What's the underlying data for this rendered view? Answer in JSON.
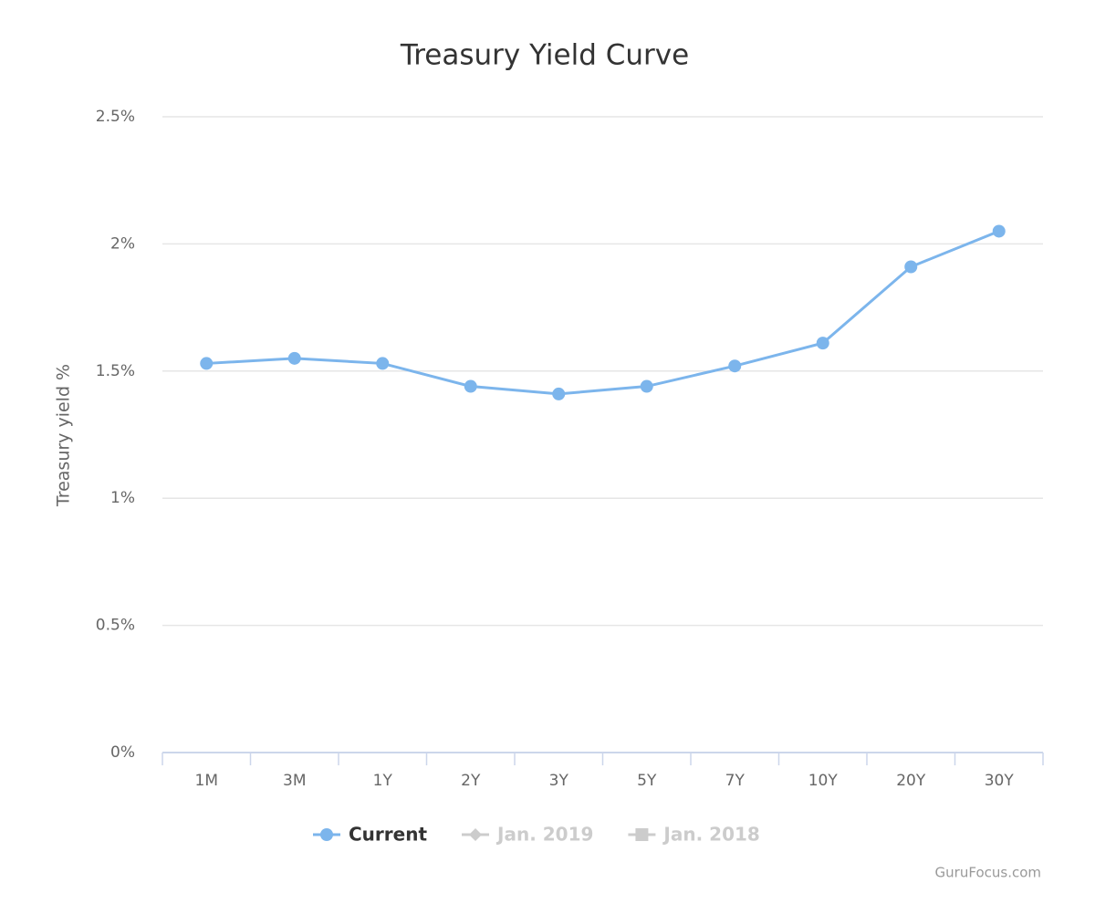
{
  "chart_data": {
    "type": "line",
    "title": "Treasury Yield Curve",
    "y_label": "Treasury yield %",
    "credit": "GuruFocus.com",
    "categories": [
      "1M",
      "3M",
      "1Y",
      "2Y",
      "3Y",
      "5Y",
      "7Y",
      "10Y",
      "20Y",
      "30Y"
    ],
    "series": [
      {
        "name": "Current",
        "color": "#7cb5ec",
        "marker": "circle",
        "visible": true,
        "values": [
          1.53,
          1.55,
          1.53,
          1.44,
          1.41,
          1.44,
          1.52,
          1.61,
          1.91,
          2.05
        ]
      },
      {
        "name": "Jan. 2019",
        "color": "#cccccc",
        "marker": "diamond",
        "visible": false,
        "values": [
          null,
          null,
          null,
          null,
          null,
          null,
          null,
          null,
          null,
          null
        ]
      },
      {
        "name": "Jan. 2018",
        "color": "#cccccc",
        "marker": "square",
        "visible": false,
        "values": [
          null,
          null,
          null,
          null,
          null,
          null,
          null,
          null,
          null,
          null
        ]
      }
    ],
    "ylim": [
      0,
      2.5
    ],
    "yticks": [
      {
        "value": 0,
        "label": "0%"
      },
      {
        "value": 0.5,
        "label": "0.5%"
      },
      {
        "value": 1,
        "label": "1%"
      },
      {
        "value": 1.5,
        "label": "1.5%"
      },
      {
        "value": 2,
        "label": "2%"
      },
      {
        "value": 2.5,
        "label": "2.5%"
      }
    ],
    "grid": true,
    "legend": "bottom"
  }
}
